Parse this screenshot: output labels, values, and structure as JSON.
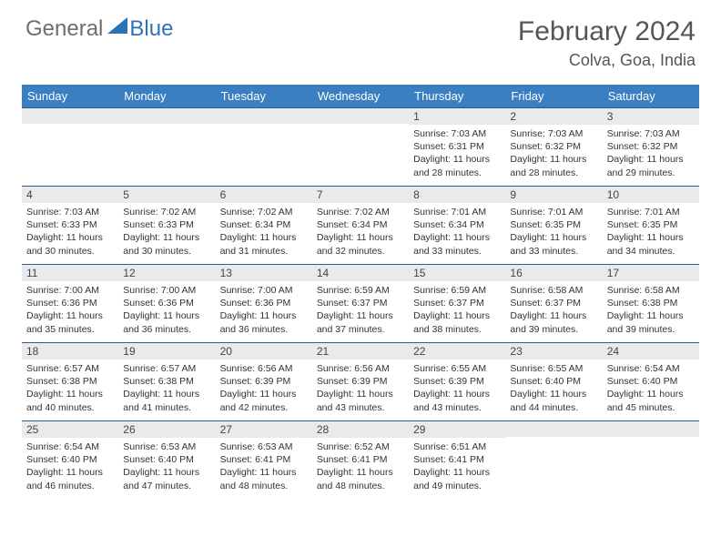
{
  "logo": {
    "general": "General",
    "blue": "Blue"
  },
  "title": "February 2024",
  "location": "Colva, Goa, India",
  "colors": {
    "header_bg": "#3a7fc1",
    "header_text": "#ffffff",
    "row_divider": "#2b5f93",
    "daynum_bg": "#e9eaec",
    "logo_gray": "#6e6e6e",
    "logo_blue": "#2b74b8",
    "body_text": "#333333"
  },
  "weekdays": [
    "Sunday",
    "Monday",
    "Tuesday",
    "Wednesday",
    "Thursday",
    "Friday",
    "Saturday"
  ],
  "weeks": [
    [
      null,
      null,
      null,
      null,
      {
        "n": "1",
        "sr": "Sunrise: 7:03 AM",
        "ss": "Sunset: 6:31 PM",
        "dl": "Daylight: 11 hours and 28 minutes."
      },
      {
        "n": "2",
        "sr": "Sunrise: 7:03 AM",
        "ss": "Sunset: 6:32 PM",
        "dl": "Daylight: 11 hours and 28 minutes."
      },
      {
        "n": "3",
        "sr": "Sunrise: 7:03 AM",
        "ss": "Sunset: 6:32 PM",
        "dl": "Daylight: 11 hours and 29 minutes."
      }
    ],
    [
      {
        "n": "4",
        "sr": "Sunrise: 7:03 AM",
        "ss": "Sunset: 6:33 PM",
        "dl": "Daylight: 11 hours and 30 minutes."
      },
      {
        "n": "5",
        "sr": "Sunrise: 7:02 AM",
        "ss": "Sunset: 6:33 PM",
        "dl": "Daylight: 11 hours and 30 minutes."
      },
      {
        "n": "6",
        "sr": "Sunrise: 7:02 AM",
        "ss": "Sunset: 6:34 PM",
        "dl": "Daylight: 11 hours and 31 minutes."
      },
      {
        "n": "7",
        "sr": "Sunrise: 7:02 AM",
        "ss": "Sunset: 6:34 PM",
        "dl": "Daylight: 11 hours and 32 minutes."
      },
      {
        "n": "8",
        "sr": "Sunrise: 7:01 AM",
        "ss": "Sunset: 6:34 PM",
        "dl": "Daylight: 11 hours and 33 minutes."
      },
      {
        "n": "9",
        "sr": "Sunrise: 7:01 AM",
        "ss": "Sunset: 6:35 PM",
        "dl": "Daylight: 11 hours and 33 minutes."
      },
      {
        "n": "10",
        "sr": "Sunrise: 7:01 AM",
        "ss": "Sunset: 6:35 PM",
        "dl": "Daylight: 11 hours and 34 minutes."
      }
    ],
    [
      {
        "n": "11",
        "sr": "Sunrise: 7:00 AM",
        "ss": "Sunset: 6:36 PM",
        "dl": "Daylight: 11 hours and 35 minutes."
      },
      {
        "n": "12",
        "sr": "Sunrise: 7:00 AM",
        "ss": "Sunset: 6:36 PM",
        "dl": "Daylight: 11 hours and 36 minutes."
      },
      {
        "n": "13",
        "sr": "Sunrise: 7:00 AM",
        "ss": "Sunset: 6:36 PM",
        "dl": "Daylight: 11 hours and 36 minutes."
      },
      {
        "n": "14",
        "sr": "Sunrise: 6:59 AM",
        "ss": "Sunset: 6:37 PM",
        "dl": "Daylight: 11 hours and 37 minutes."
      },
      {
        "n": "15",
        "sr": "Sunrise: 6:59 AM",
        "ss": "Sunset: 6:37 PM",
        "dl": "Daylight: 11 hours and 38 minutes."
      },
      {
        "n": "16",
        "sr": "Sunrise: 6:58 AM",
        "ss": "Sunset: 6:37 PM",
        "dl": "Daylight: 11 hours and 39 minutes."
      },
      {
        "n": "17",
        "sr": "Sunrise: 6:58 AM",
        "ss": "Sunset: 6:38 PM",
        "dl": "Daylight: 11 hours and 39 minutes."
      }
    ],
    [
      {
        "n": "18",
        "sr": "Sunrise: 6:57 AM",
        "ss": "Sunset: 6:38 PM",
        "dl": "Daylight: 11 hours and 40 minutes."
      },
      {
        "n": "19",
        "sr": "Sunrise: 6:57 AM",
        "ss": "Sunset: 6:38 PM",
        "dl": "Daylight: 11 hours and 41 minutes."
      },
      {
        "n": "20",
        "sr": "Sunrise: 6:56 AM",
        "ss": "Sunset: 6:39 PM",
        "dl": "Daylight: 11 hours and 42 minutes."
      },
      {
        "n": "21",
        "sr": "Sunrise: 6:56 AM",
        "ss": "Sunset: 6:39 PM",
        "dl": "Daylight: 11 hours and 43 minutes."
      },
      {
        "n": "22",
        "sr": "Sunrise: 6:55 AM",
        "ss": "Sunset: 6:39 PM",
        "dl": "Daylight: 11 hours and 43 minutes."
      },
      {
        "n": "23",
        "sr": "Sunrise: 6:55 AM",
        "ss": "Sunset: 6:40 PM",
        "dl": "Daylight: 11 hours and 44 minutes."
      },
      {
        "n": "24",
        "sr": "Sunrise: 6:54 AM",
        "ss": "Sunset: 6:40 PM",
        "dl": "Daylight: 11 hours and 45 minutes."
      }
    ],
    [
      {
        "n": "25",
        "sr": "Sunrise: 6:54 AM",
        "ss": "Sunset: 6:40 PM",
        "dl": "Daylight: 11 hours and 46 minutes."
      },
      {
        "n": "26",
        "sr": "Sunrise: 6:53 AM",
        "ss": "Sunset: 6:40 PM",
        "dl": "Daylight: 11 hours and 47 minutes."
      },
      {
        "n": "27",
        "sr": "Sunrise: 6:53 AM",
        "ss": "Sunset: 6:41 PM",
        "dl": "Daylight: 11 hours and 48 minutes."
      },
      {
        "n": "28",
        "sr": "Sunrise: 6:52 AM",
        "ss": "Sunset: 6:41 PM",
        "dl": "Daylight: 11 hours and 48 minutes."
      },
      {
        "n": "29",
        "sr": "Sunrise: 6:51 AM",
        "ss": "Sunset: 6:41 PM",
        "dl": "Daylight: 11 hours and 49 minutes."
      },
      null,
      null
    ]
  ]
}
